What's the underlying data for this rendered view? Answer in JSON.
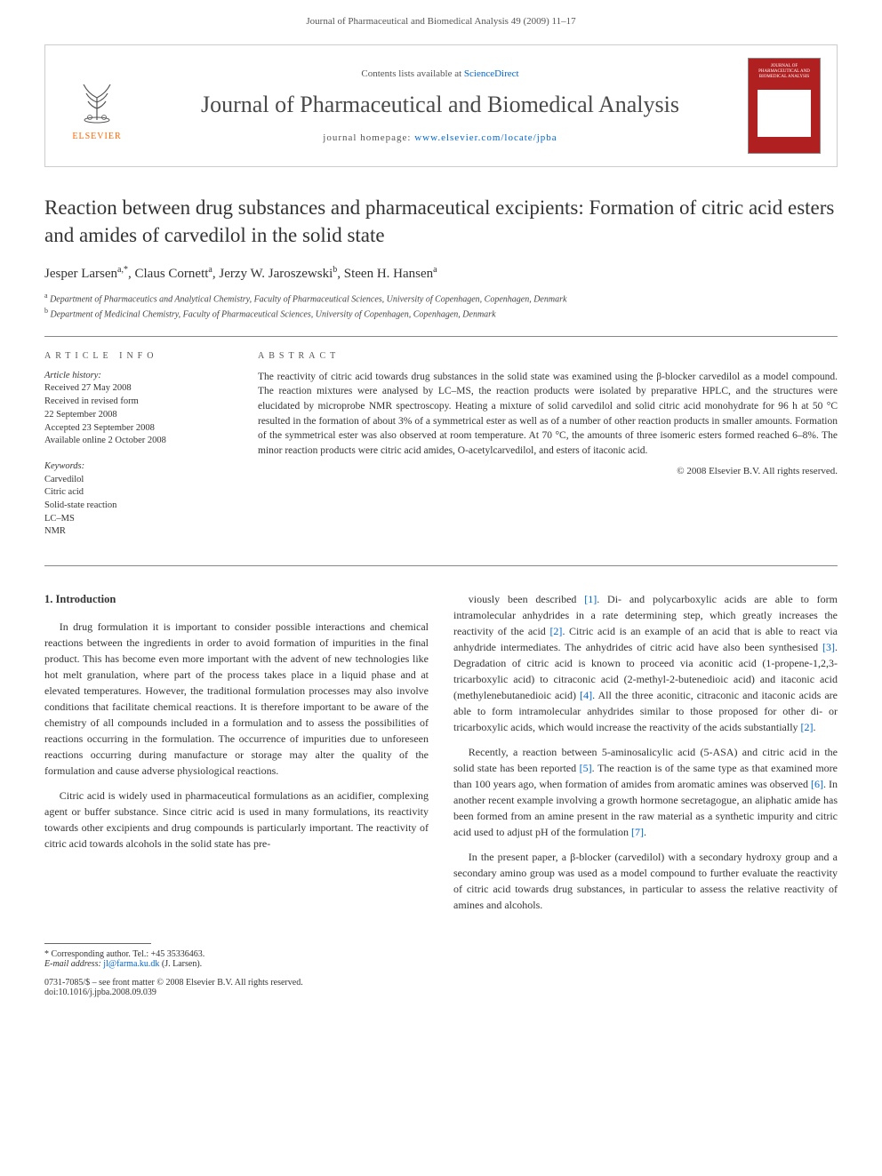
{
  "header": {
    "running": "Journal of Pharmaceutical and Biomedical Analysis 49 (2009) 11–17"
  },
  "banner": {
    "contents_prefix": "Contents lists available at ",
    "contents_link": "ScienceDirect",
    "journal": "Journal of Pharmaceutical and Biomedical Analysis",
    "homepage_prefix": "journal homepage: ",
    "homepage_link": "www.elsevier.com/locate/jpba",
    "publisher": "ELSEVIER",
    "cover_text": "JOURNAL OF PHARMACEUTICAL AND BIOMEDICAL ANALYSIS"
  },
  "title": "Reaction between drug substances and pharmaceutical excipients: Formation of citric acid esters and amides of carvedilol in the solid state",
  "authors": [
    {
      "name": "Jesper Larsen",
      "marks": "a,*"
    },
    {
      "name": "Claus Cornett",
      "marks": "a"
    },
    {
      "name": "Jerzy W. Jaroszewski",
      "marks": "b"
    },
    {
      "name": "Steen H. Hansen",
      "marks": "a"
    }
  ],
  "affiliations": [
    {
      "mark": "a",
      "text": "Department of Pharmaceutics and Analytical Chemistry, Faculty of Pharmaceutical Sciences, University of Copenhagen, Copenhagen, Denmark"
    },
    {
      "mark": "b",
      "text": "Department of Medicinal Chemistry, Faculty of Pharmaceutical Sciences, University of Copenhagen, Copenhagen, Denmark"
    }
  ],
  "article_info": {
    "heading": "article info",
    "history_label": "Article history:",
    "history": [
      "Received 27 May 2008",
      "Received in revised form",
      "22 September 2008",
      "Accepted 23 September 2008",
      "Available online 2 October 2008"
    ],
    "keywords_label": "Keywords:",
    "keywords": [
      "Carvedilol",
      "Citric acid",
      "Solid-state reaction",
      "LC–MS",
      "NMR"
    ]
  },
  "abstract": {
    "heading": "abstract",
    "text": "The reactivity of citric acid towards drug substances in the solid state was examined using the β-blocker carvedilol as a model compound. The reaction mixtures were analysed by LC–MS, the reaction products were isolated by preparative HPLC, and the structures were elucidated by microprobe NMR spectroscopy. Heating a mixture of solid carvedilol and solid citric acid monohydrate for 96 h at 50 °C resulted in the formation of about 3% of a symmetrical ester as well as of a number of other reaction products in smaller amounts. Formation of the symmetrical ester was also observed at room temperature. At 70 °C, the amounts of three isomeric esters formed reached 6–8%. The minor reaction products were citric acid amides, O-acetylcarvedilol, and esters of itaconic acid.",
    "copyright": "© 2008 Elsevier B.V. All rights reserved."
  },
  "body": {
    "section_heading": "1. Introduction",
    "col1": [
      "In drug formulation it is important to consider possible interactions and chemical reactions between the ingredients in order to avoid formation of impurities in the final product. This has become even more important with the advent of new technologies like hot melt granulation, where part of the process takes place in a liquid phase and at elevated temperatures. However, the traditional formulation processes may also involve conditions that facilitate chemical reactions. It is therefore important to be aware of the chemistry of all compounds included in a formulation and to assess the possibilities of reactions occurring in the formulation. The occurrence of impurities due to unforeseen reactions occurring during manufacture or storage may alter the quality of the formulation and cause adverse physiological reactions.",
      "Citric acid is widely used in pharmaceutical formulations as an acidifier, complexing agent or buffer substance. Since citric acid is used in many formulations, its reactivity towards other excipients and drug compounds is particularly important. The reactivity of citric acid towards alcohols in the solid state has pre-"
    ],
    "col2": [
      "viously been described [1]. Di- and polycarboxylic acids are able to form intramolecular anhydrides in a rate determining step, which greatly increases the reactivity of the acid [2]. Citric acid is an example of an acid that is able to react via anhydride intermediates. The anhydrides of citric acid have also been synthesised [3]. Degradation of citric acid is known to proceed via aconitic acid (1-propene-1,2,3-tricarboxylic acid) to citraconic acid (2-methyl-2-butenedioic acid) and itaconic acid (methylenebutanedioic acid) [4]. All the three aconitic, citraconic and itaconic acids are able to form intramolecular anhydrides similar to those proposed for other di- or tricarboxylic acids, which would increase the reactivity of the acids substantially [2].",
      "Recently, a reaction between 5-aminosalicylic acid (5-ASA) and citric acid in the solid state has been reported [5]. The reaction is of the same type as that examined more than 100 years ago, when formation of amides from aromatic amines was observed [6]. In another recent example involving a growth hormone secretagogue, an aliphatic amide has been formed from an amine present in the raw material as a synthetic impurity and citric acid used to adjust pH of the formulation [7].",
      "In the present paper, a β-blocker (carvedilol) with a secondary hydroxy group and a secondary amino group was used as a model compound to further evaluate the reactivity of citric acid towards drug substances, in particular to assess the relative reactivity of amines and alcohols."
    ],
    "refs": [
      "[1]",
      "[2]",
      "[3]",
      "[4]",
      "[5]",
      "[6]",
      "[7]"
    ]
  },
  "footer": {
    "corresponding": "* Corresponding author. Tel.: +45 35336463.",
    "email_label": "E-mail address: ",
    "email": "jl@farma.ku.dk",
    "email_name": " (J. Larsen).",
    "issn": "0731-7085/$ – see front matter © 2008 Elsevier B.V. All rights reserved.",
    "doi": "doi:10.1016/j.jpba.2008.09.039"
  },
  "colors": {
    "link": "#0066cc",
    "elsevier_orange": "#ff6600",
    "cover_red": "#b02020",
    "text": "#333333",
    "border": "#cccccc"
  }
}
